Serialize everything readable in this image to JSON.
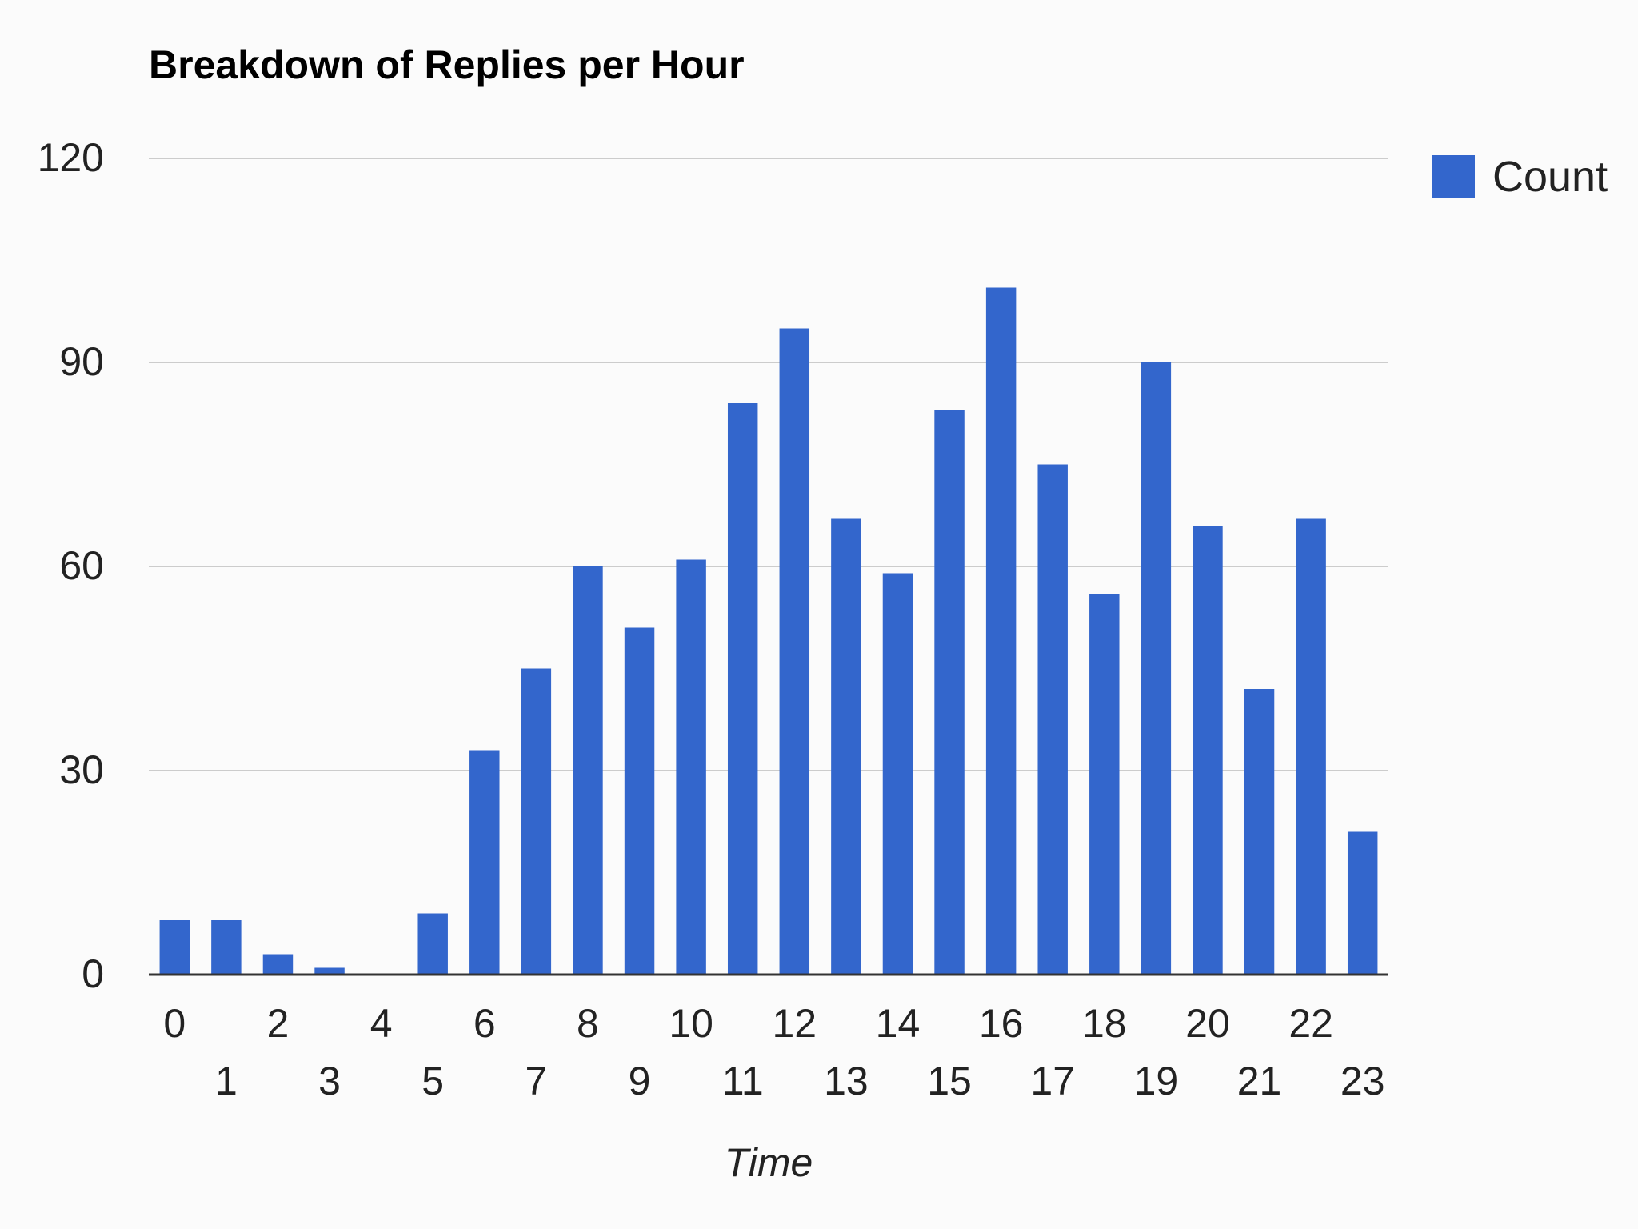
{
  "chart_data": {
    "type": "bar",
    "title": "Breakdown of Replies per Hour",
    "xlabel": "Time",
    "ylabel": "",
    "categories": [
      "0",
      "1",
      "2",
      "3",
      "4",
      "5",
      "6",
      "7",
      "8",
      "9",
      "10",
      "11",
      "12",
      "13",
      "14",
      "15",
      "16",
      "17",
      "18",
      "19",
      "20",
      "21",
      "22",
      "23"
    ],
    "series": [
      {
        "name": "Count",
        "color": "#3366cc",
        "values": [
          8,
          8,
          3,
          1,
          0,
          9,
          33,
          45,
          60,
          51,
          61,
          84,
          95,
          67,
          59,
          83,
          101,
          75,
          56,
          90,
          66,
          42,
          67,
          21
        ]
      }
    ],
    "ylim": [
      0,
      120
    ],
    "yticks": [
      "0",
      "30",
      "60",
      "90",
      "120"
    ],
    "grid": true,
    "legend_position": "right-top",
    "colors": {
      "bar": "#3366cc",
      "grid": "#cccccc",
      "baseline": "#333333",
      "text": "#222222"
    }
  }
}
